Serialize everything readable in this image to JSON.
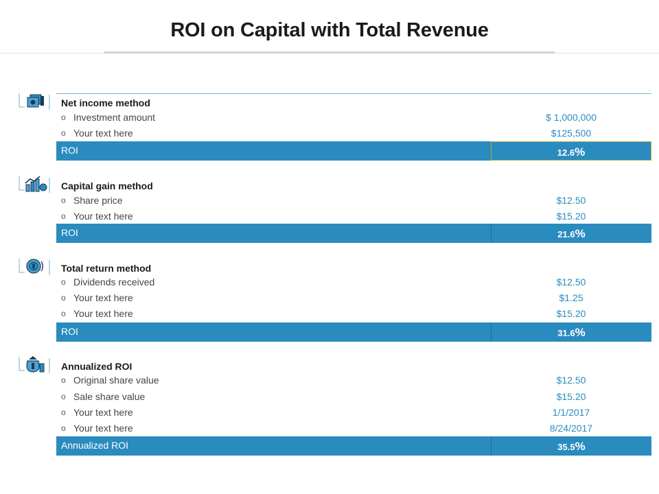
{
  "title": "ROI on Capital with Total Revenue",
  "colors": {
    "accent": "#2a8bbf",
    "value_text": "#2a8bbf",
    "rule": "#7ab0cf"
  },
  "sections": [
    {
      "heading": "Net income method",
      "icon": "money-stack-icon",
      "rows": [
        {
          "label": "Investment amount",
          "value": "$ 1,000,000"
        },
        {
          "label": "Your text here",
          "value": "$125,500"
        }
      ],
      "result_label": "ROI",
      "result_value": "12.6",
      "result_unit": "%"
    },
    {
      "heading": "Capital gain method",
      "icon": "growth-chart-icon",
      "rows": [
        {
          "label": "Share price",
          "value": "$12.50"
        },
        {
          "label": "Your text here",
          "value": "$15.20"
        }
      ],
      "result_label": "ROI",
      "result_value": "21.6",
      "result_unit": "%"
    },
    {
      "heading": "Total return method",
      "icon": "coin-return-icon",
      "rows": [
        {
          "label": "Dividends received",
          "value": "$12.50"
        },
        {
          "label": "Your text here",
          "value": "$1.25"
        },
        {
          "label": "Your text here",
          "value": "$15.20"
        }
      ],
      "result_label": "ROI",
      "result_value": "31.6",
      "result_unit": "%"
    },
    {
      "heading": "Annualized ROI",
      "icon": "money-bag-icon",
      "rows": [
        {
          "label": "Original share value",
          "value": "$12.50"
        },
        {
          "label": "Sale share value",
          "value": "$15.20"
        },
        {
          "label": "Your text here",
          "value": "1/1/2017"
        },
        {
          "label": "Your text here",
          "value": "8/24/2017"
        }
      ],
      "result_label": "Annualized ROI",
      "result_value": "35.5",
      "result_unit": "%"
    }
  ]
}
